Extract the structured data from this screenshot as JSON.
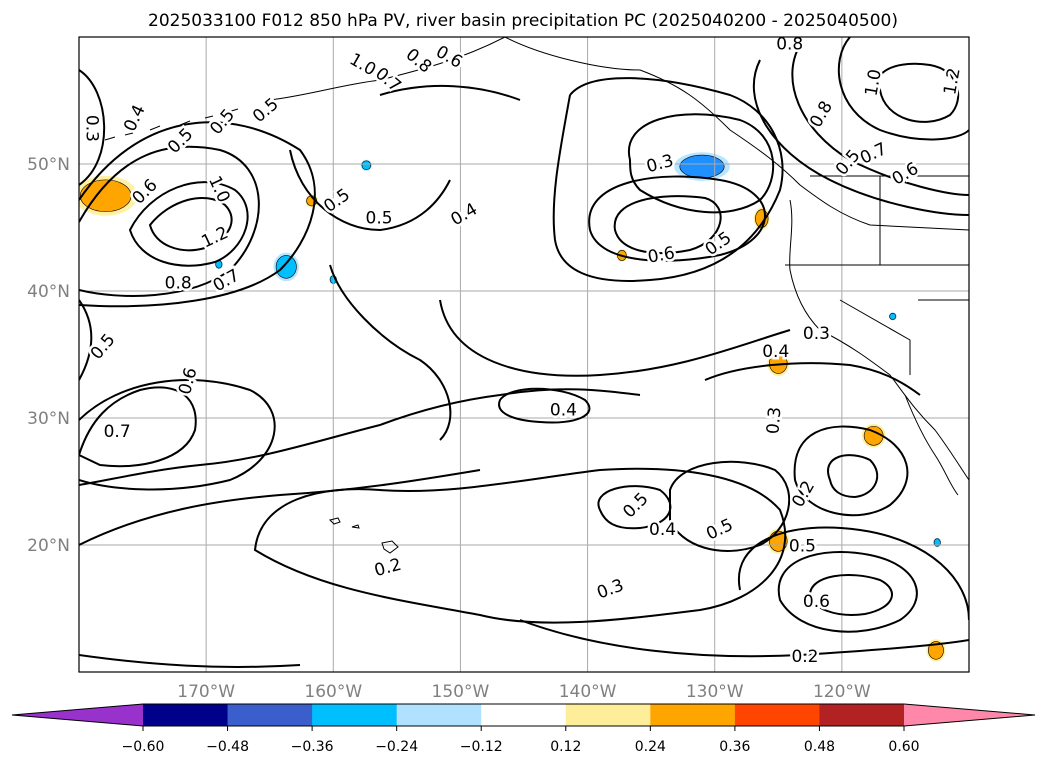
{
  "chart_data": {
    "type": "contour-map",
    "title": "2025033100 F012 850 hPa PV, river basin precipitation PC (2025040200 - 2025040500)",
    "map": {
      "lon_range": [
        -180,
        -110
      ],
      "lat_range": [
        10,
        60
      ],
      "lat_ticks": [
        {
          "value": 50,
          "label": "50°N"
        },
        {
          "value": 40,
          "label": "40°N"
        },
        {
          "value": 30,
          "label": "30°N"
        },
        {
          "value": 20,
          "label": "20°N"
        }
      ],
      "lon_ticks": [
        {
          "value": -170,
          "label": "170°W"
        },
        {
          "value": -160,
          "label": "160°W"
        },
        {
          "value": -150,
          "label": "150°W"
        },
        {
          "value": -140,
          "label": "140°W"
        },
        {
          "value": -130,
          "label": "130°W"
        },
        {
          "value": -120,
          "label": "120°W"
        }
      ],
      "grid": true
    },
    "contour_labels": [
      {
        "text": "0.3",
        "lon": -179,
        "lat": 52.8,
        "rot": 90
      },
      {
        "text": "0.4",
        "lon": -175.6,
        "lat": 53.6,
        "rot": -65
      },
      {
        "text": "0.5",
        "lon": -172,
        "lat": 51.8,
        "rot": -45
      },
      {
        "text": "0.6",
        "lon": -174.8,
        "lat": 47.8,
        "rot": -45
      },
      {
        "text": "1.0",
        "lon": -169,
        "lat": 48,
        "rot": 65
      },
      {
        "text": "1.2",
        "lon": -169.3,
        "lat": 44.2,
        "rot": -25
      },
      {
        "text": "0.8",
        "lon": -172.2,
        "lat": 40.6,
        "rot": 0
      },
      {
        "text": "0.7",
        "lon": -168.4,
        "lat": 40.8,
        "rot": -30
      },
      {
        "text": "0.5",
        "lon": -168.7,
        "lat": 53.3,
        "rot": -50
      },
      {
        "text": "0.5",
        "lon": -165.3,
        "lat": 54.2,
        "rot": -40
      },
      {
        "text": "1.0",
        "lon": -157.7,
        "lat": 57.8,
        "rot": 30
      },
      {
        "text": "0.7",
        "lon": -155.7,
        "lat": 56.6,
        "rot": 40
      },
      {
        "text": "0.8",
        "lon": -153.3,
        "lat": 58.1,
        "rot": 40
      },
      {
        "text": "0.6",
        "lon": -150.9,
        "lat": 58.4,
        "rot": 30
      },
      {
        "text": "0.5",
        "lon": -159.7,
        "lat": 47.1,
        "rot": -35
      },
      {
        "text": "0.5",
        "lon": -156.4,
        "lat": 45.7,
        "rot": 0
      },
      {
        "text": "0.4",
        "lon": -149.7,
        "lat": 46,
        "rot": -30
      },
      {
        "text": "0.3",
        "lon": -134.3,
        "lat": 50,
        "rot": -15
      },
      {
        "text": "0.6",
        "lon": -134.2,
        "lat": 42.8,
        "rot": -10
      },
      {
        "text": "0.5",
        "lon": -129.7,
        "lat": 43.7,
        "rot": -35
      },
      {
        "text": "0.8",
        "lon": -124.1,
        "lat": 59.4,
        "rot": 0
      },
      {
        "text": "1.0",
        "lon": -117.5,
        "lat": 56.4,
        "rot": -80
      },
      {
        "text": "1.2",
        "lon": -111.3,
        "lat": 56.5,
        "rot": -80
      },
      {
        "text": "0.8",
        "lon": -121.6,
        "lat": 53.9,
        "rot": -60
      },
      {
        "text": "0.5",
        "lon": -119.5,
        "lat": 50.1,
        "rot": -50
      },
      {
        "text": "0.7",
        "lon": -117.5,
        "lat": 50.8,
        "rot": -25
      },
      {
        "text": "0.6",
        "lon": -115,
        "lat": 49.2,
        "rot": -30
      },
      {
        "text": "0.3",
        "lon": -122,
        "lat": 36.6,
        "rot": 0
      },
      {
        "text": "0.4",
        "lon": -125.2,
        "lat": 35.2,
        "rot": 0
      },
      {
        "text": "0.5",
        "lon": -178.1,
        "lat": 35.6,
        "rot": -50
      },
      {
        "text": "0.6",
        "lon": -171.4,
        "lat": 32.9,
        "rot": -75
      },
      {
        "text": "0.7",
        "lon": -177,
        "lat": 28.9,
        "rot": 0
      },
      {
        "text": "0.4",
        "lon": -141.9,
        "lat": 30.6,
        "rot": 0
      },
      {
        "text": "0.3",
        "lon": -125.3,
        "lat": 29.8,
        "rot": -85
      },
      {
        "text": "0.2",
        "lon": -123,
        "lat": 24,
        "rot": -60
      },
      {
        "text": "0.5",
        "lon": -136.2,
        "lat": 23.1,
        "rot": -45
      },
      {
        "text": "0.4",
        "lon": -134.1,
        "lat": 21.2,
        "rot": 0
      },
      {
        "text": "0.5",
        "lon": -129.6,
        "lat": 21.2,
        "rot": -25
      },
      {
        "text": "0.5",
        "lon": -123.1,
        "lat": 19.9,
        "rot": 0
      },
      {
        "text": "0.6",
        "lon": -122,
        "lat": 15.5,
        "rot": 0
      },
      {
        "text": "0.2",
        "lon": -122.9,
        "lat": 11.2,
        "rot": 0
      },
      {
        "text": "0.3",
        "lon": -138.2,
        "lat": 16.5,
        "rot": -20
      },
      {
        "text": "0.2",
        "lon": -155.7,
        "lat": 18.2,
        "rot": -15
      }
    ],
    "shaded_regions": [
      {
        "level": 0.24,
        "color": "#ffa500",
        "lon": -177.9,
        "lat": 47.5,
        "w": 4.0,
        "h": 2.5
      },
      {
        "level": -0.36,
        "color": "#1e90ff",
        "lon": -131,
        "lat": 49.8,
        "w": 3.5,
        "h": 1.8
      },
      {
        "level": -0.24,
        "color": "#00bfff",
        "lon": -163.7,
        "lat": 41.9,
        "w": 1.6,
        "h": 1.8
      },
      {
        "level": 0.24,
        "color": "#ffa500",
        "lon": -125,
        "lat": 34.3,
        "w": 1.4,
        "h": 1.6
      },
      {
        "level": 0.24,
        "color": "#ffa500",
        "lon": -125,
        "lat": 20.3,
        "w": 1.4,
        "h": 1.6
      },
      {
        "level": 0.24,
        "color": "#ffa500",
        "lon": -117.5,
        "lat": 28.6,
        "w": 1.5,
        "h": 1.5
      },
      {
        "level": 0.24,
        "color": "#ffa500",
        "lon": -126.3,
        "lat": 45.7,
        "w": 1.0,
        "h": 1.4
      },
      {
        "level": 0.24,
        "color": "#ffa500",
        "lon": -112.6,
        "lat": 11.7,
        "w": 1.2,
        "h": 1.4
      },
      {
        "level": 0.24,
        "color": "#ffa500",
        "lon": -161.7,
        "lat": 47.1,
        "w": 0.8,
        "h": 0.8
      },
      {
        "level": 0.24,
        "color": "#ffa500",
        "lon": -137.3,
        "lat": 42.8,
        "w": 0.7,
        "h": 0.8
      },
      {
        "level": -0.24,
        "color": "#00bfff",
        "lon": -157.4,
        "lat": 49.9,
        "w": 0.7,
        "h": 0.7
      },
      {
        "level": -0.24,
        "color": "#00bfff",
        "lon": -169,
        "lat": 42.1,
        "w": 0.5,
        "h": 0.6
      },
      {
        "level": -0.24,
        "color": "#00bfff",
        "lon": -160,
        "lat": 40.9,
        "w": 0.5,
        "h": 0.6
      },
      {
        "level": -0.24,
        "color": "#00bfff",
        "lon": -112.5,
        "lat": 20.2,
        "w": 0.5,
        "h": 0.6
      },
      {
        "level": -0.24,
        "color": "#00bfff",
        "lon": -116,
        "lat": 38,
        "w": 0.5,
        "h": 0.5
      }
    ],
    "colorbar": {
      "orientation": "horizontal",
      "extend": "both",
      "boundaries": [
        -0.72,
        -0.6,
        -0.48,
        -0.36,
        -0.24,
        -0.12,
        0.12,
        0.24,
        0.36,
        0.48,
        0.6,
        0.72
      ],
      "colors": [
        "#9932cc",
        "#00008b",
        "#3a5fcd",
        "#00bfff",
        "#b0e2ff",
        "#ffffff",
        "#ffee99",
        "#ffa500",
        "#ff4500",
        "#b22222",
        "#ff88aa"
      ],
      "tick_values": [
        -0.6,
        -0.48,
        -0.36,
        -0.24,
        -0.12,
        0.12,
        0.24,
        0.36,
        0.48,
        0.6
      ],
      "tick_labels": [
        "−0.60",
        "−0.48",
        "−0.36",
        "−0.24",
        "−0.12",
        "0.12",
        "0.24",
        "0.36",
        "0.48",
        "0.60"
      ]
    }
  }
}
